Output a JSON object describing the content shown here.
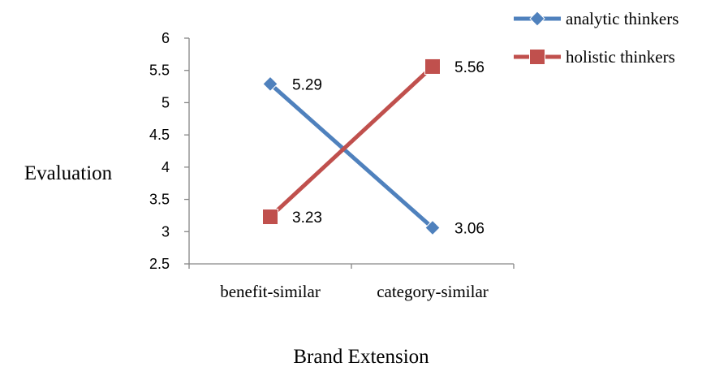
{
  "chart_data": {
    "type": "line",
    "categories": [
      "benefit-similar",
      "category-similar"
    ],
    "series": [
      {
        "name": "analytic thinkers",
        "values": [
          5.29,
          3.06
        ],
        "labels": [
          "5.29",
          "3.06"
        ],
        "color": "#4f81bd",
        "marker": "diamond"
      },
      {
        "name": "holistic thinkers",
        "values": [
          3.23,
          5.56
        ],
        "labels": [
          "3.23",
          "5.56"
        ],
        "color": "#c0504d",
        "marker": "square"
      }
    ],
    "xlabel": "Brand Extension",
    "ylabel": "Evaluation",
    "ylim": [
      2.5,
      6
    ],
    "yticks": [
      "2.5",
      "3",
      "3.5",
      "4",
      "4.5",
      "5",
      "5.5",
      "6"
    ],
    "grid": false,
    "legend": "top-right"
  }
}
